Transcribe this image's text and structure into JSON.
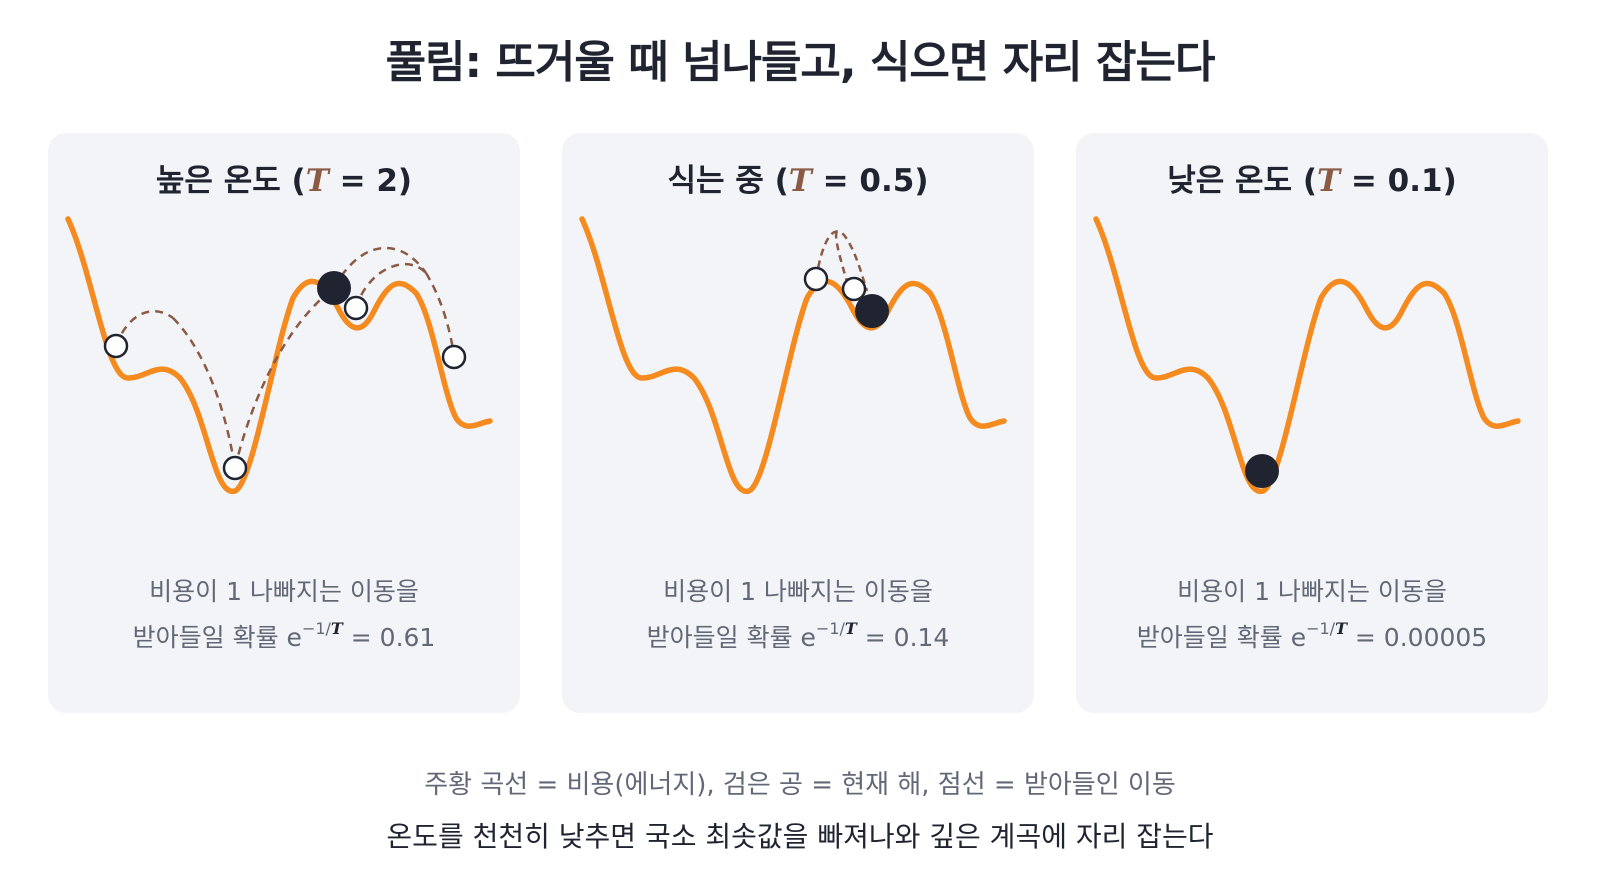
{
  "title": "풀림: 뜨거울 때 넘나들고, 식으면 자리 잡는다",
  "colors": {
    "curve": "#f58a1f",
    "ball_current": "#1f2430",
    "ball_candidate": "#ffffff",
    "dashed_path": "#8a5a44",
    "panel_bg": "#f3f4f7"
  },
  "panels": [
    {
      "title_prefix": "높은 온도 (",
      "temp_symbol": "T",
      "title_suffix": " = 2)",
      "caption_line1": "비용이 1 나빠지는 이동을",
      "caption_prefix": "받아들일 확률 e",
      "caption_exponent": "−1/",
      "caption_exponent_var": "T",
      "caption_value": " = 0.61",
      "temperature": 2,
      "probability": 0.61
    },
    {
      "title_prefix": "식는 중 (",
      "temp_symbol": "T",
      "title_suffix": " = 0.5)",
      "caption_line1": "비용이 1 나빠지는 이동을",
      "caption_prefix": "받아들일 확률 e",
      "caption_exponent": "−1/",
      "caption_exponent_var": "T",
      "caption_value": " = 0.14",
      "temperature": 0.5,
      "probability": 0.14
    },
    {
      "title_prefix": "낮은 온도 (",
      "temp_symbol": "T",
      "title_suffix": " = 0.1)",
      "caption_line1": "비용이 1 나빠지는 이동을",
      "caption_prefix": "받아들일 확률 e",
      "caption_exponent": "−1/",
      "caption_exponent_var": "T",
      "caption_value": " = 0.00005",
      "temperature": 0.1,
      "probability": 5e-05
    }
  ],
  "legend": "주황 곡선 = 비용(에너지), 검은 공 = 현재 해, 점선 = 받아들인 이동",
  "footer": "온도를 천천히 낮추면 국소 최솟값을 빠져나와 깊은 계곡에 자리 잡는다"
}
